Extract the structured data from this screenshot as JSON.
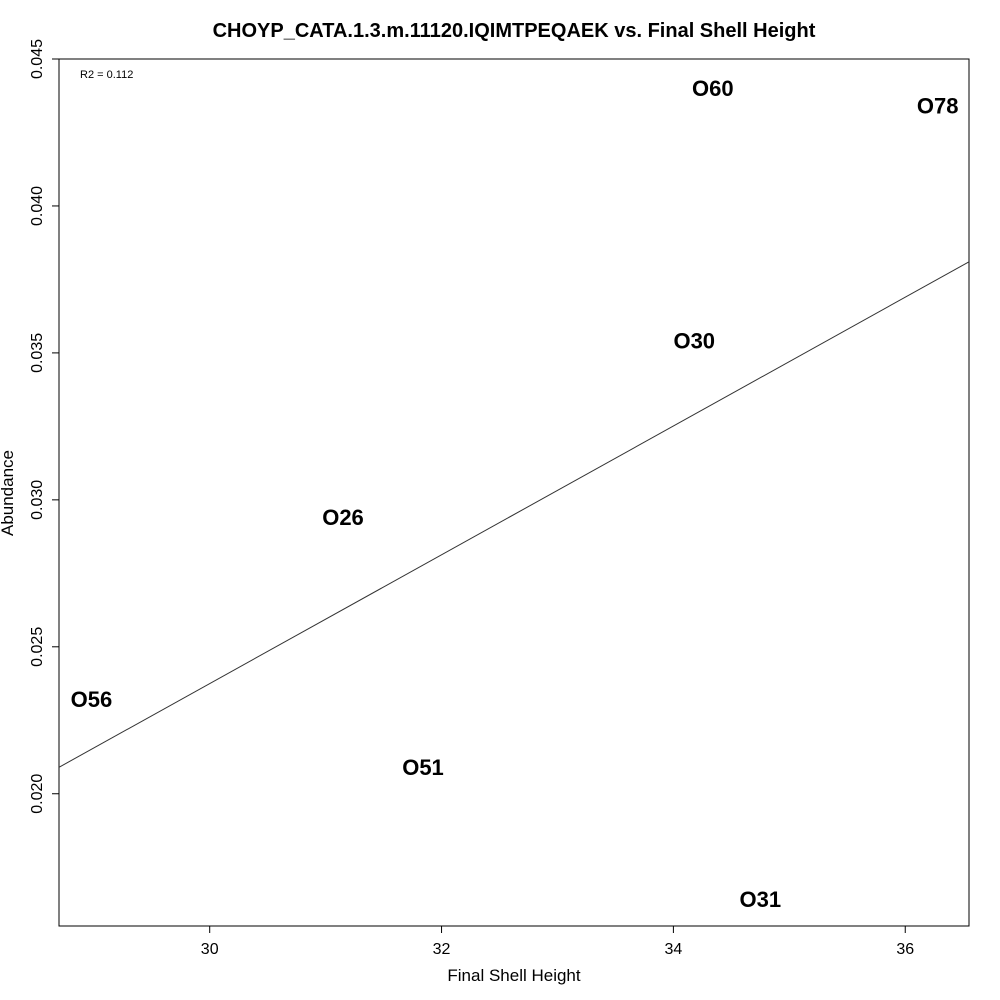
{
  "chart_data": {
    "type": "scatter",
    "title": "CHOYP_CATA.1.3.m.11120.IQIMTPEQAEK vs. Final Shell Height",
    "xlabel": "Final Shell Height",
    "ylabel": "Abundance",
    "annotation": "R2 = 0.112",
    "xlim": [
      28.7,
      36.55
    ],
    "ylim": [
      0.0155,
      0.045
    ],
    "x_ticks": [
      30,
      32,
      34,
      36
    ],
    "y_ticks": [
      0.02,
      0.025,
      0.03,
      0.035,
      0.04,
      0.045
    ],
    "x_tick_labels": [
      "30",
      "32",
      "34",
      "36"
    ],
    "y_tick_labels": [
      "0.020",
      "0.025",
      "0.030",
      "0.035",
      "0.040",
      "0.045"
    ],
    "points": [
      {
        "label": "O56",
        "x": 28.98,
        "y": 0.0232
      },
      {
        "label": "O26",
        "x": 31.15,
        "y": 0.0294
      },
      {
        "label": "O51",
        "x": 31.84,
        "y": 0.0209
      },
      {
        "label": "O30",
        "x": 34.18,
        "y": 0.0354
      },
      {
        "label": "O31",
        "x": 34.75,
        "y": 0.0164
      },
      {
        "label": "O60",
        "x": 34.34,
        "y": 0.044
      },
      {
        "label": "O78",
        "x": 36.28,
        "y": 0.0434
      }
    ],
    "regression": {
      "x": [
        28.7,
        36.55
      ],
      "y": [
        0.0209,
        0.0381
      ]
    },
    "grid": false,
    "legend": "none"
  }
}
